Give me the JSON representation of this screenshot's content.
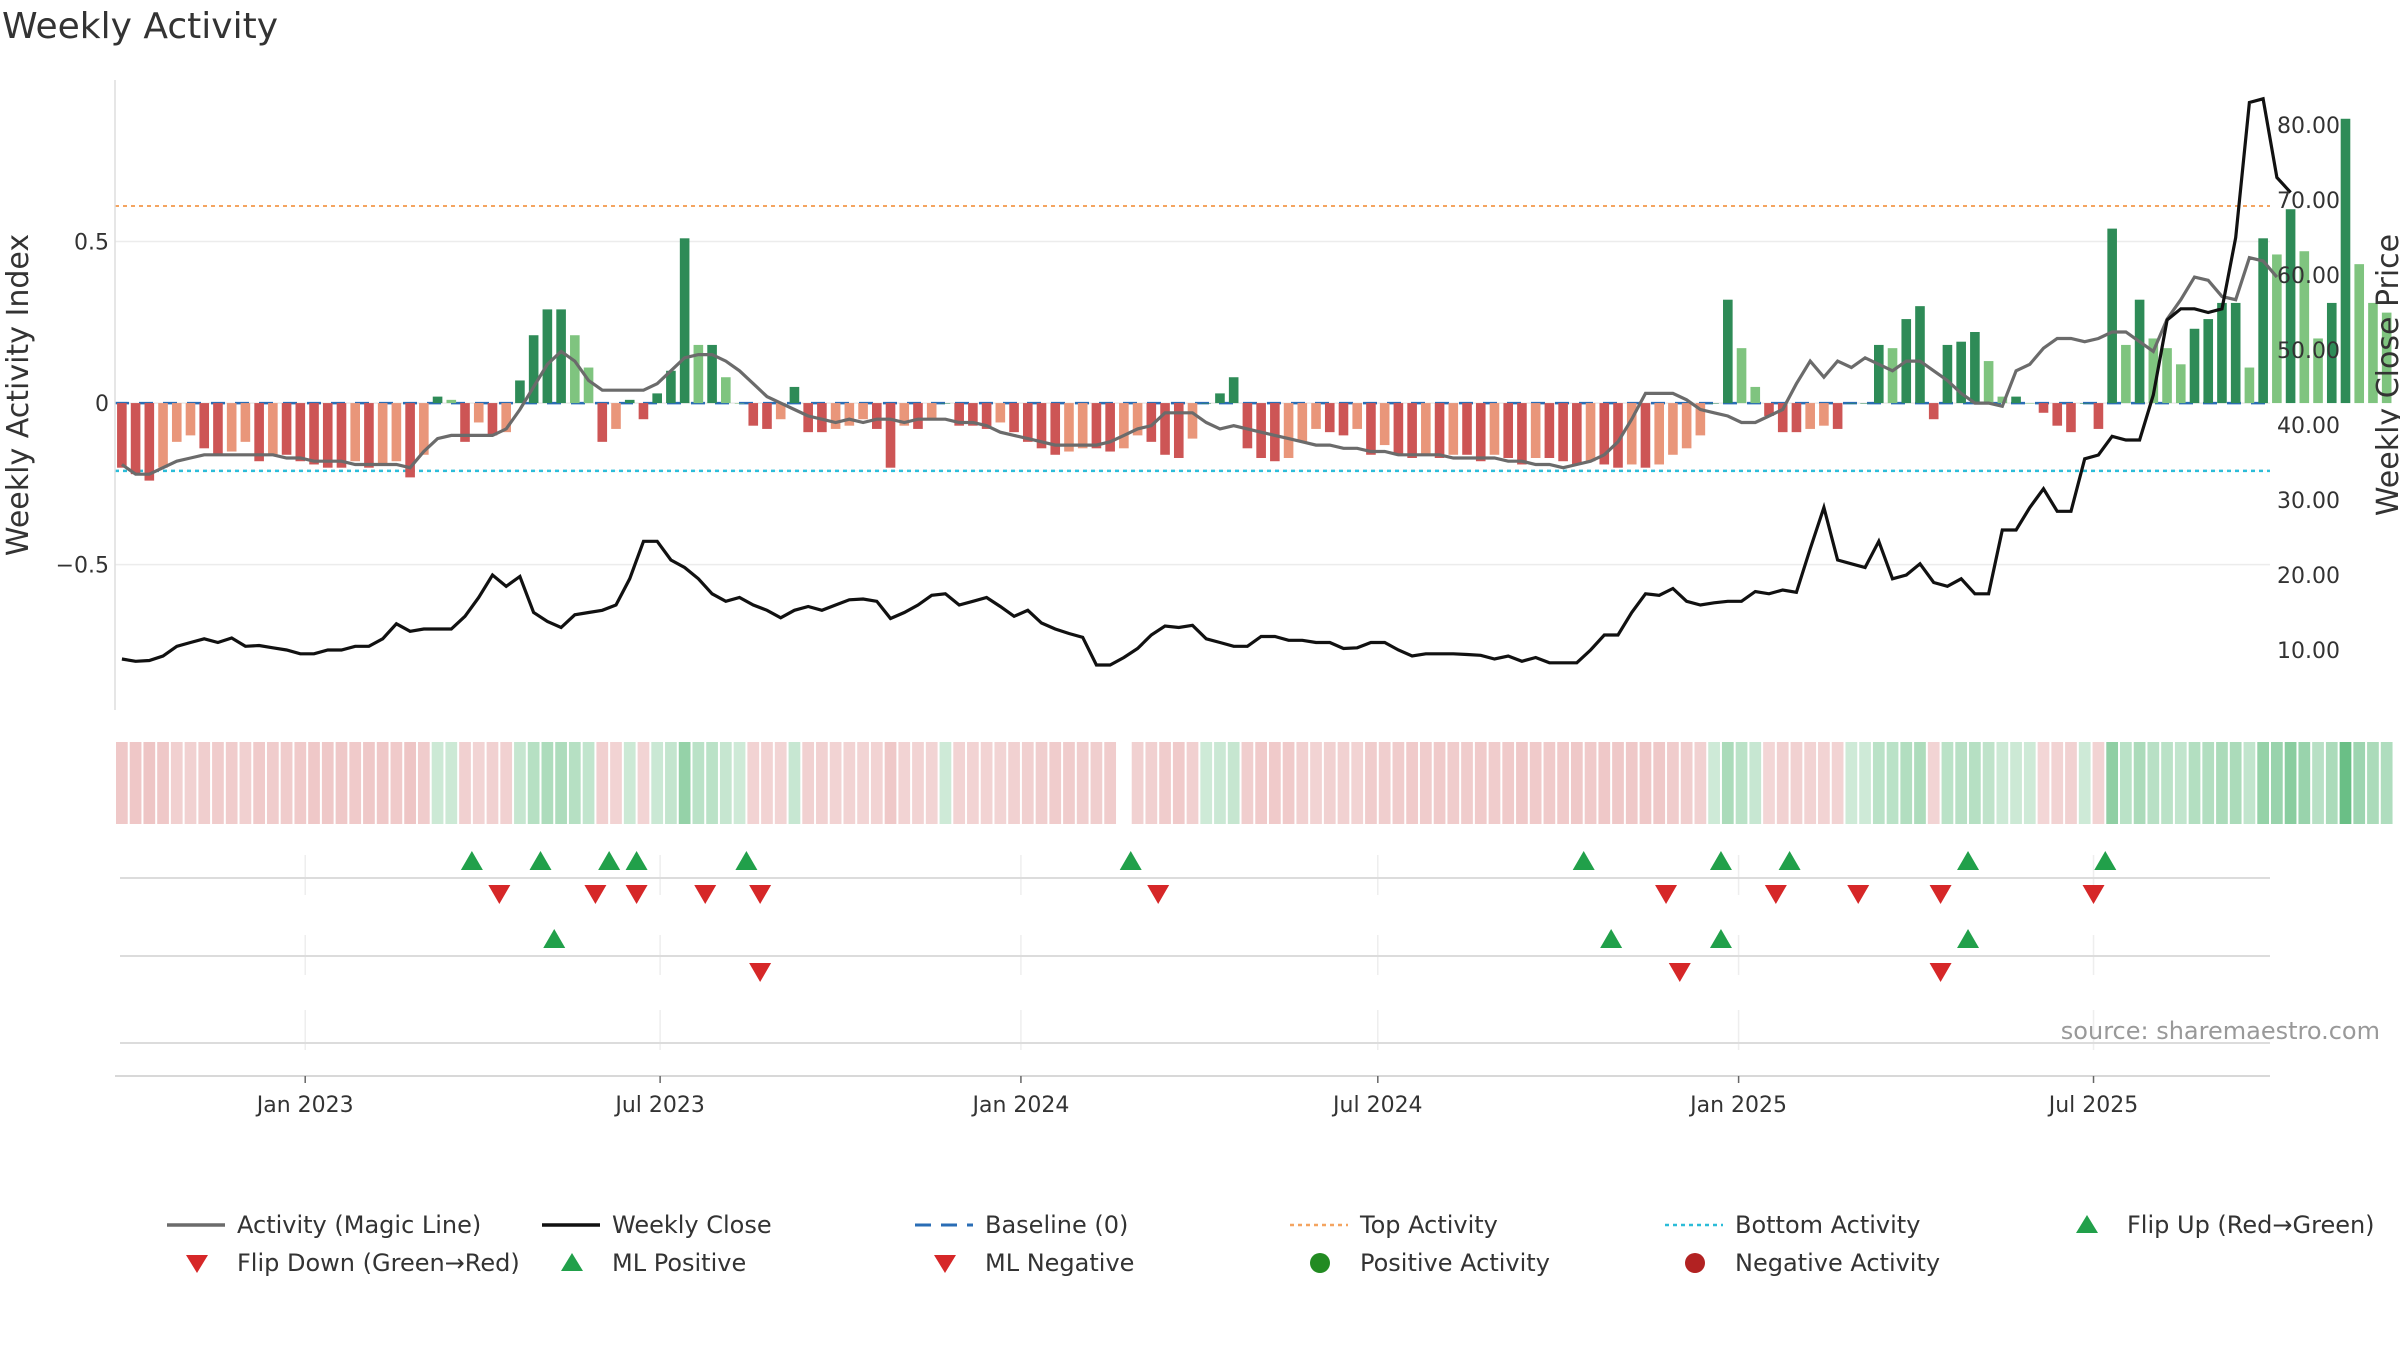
{
  "title": "Weekly Activity",
  "source": "source: sharemaestro.com",
  "colors": {
    "strong_green": "#2e8b57",
    "light_green": "#7fc47f",
    "strong_red": "#cd5555",
    "light_red": "#e9967a",
    "magic_line": "#6b6b6b",
    "close_line": "#111111",
    "baseline": "#2a6db5",
    "top_activity": "#f4a460",
    "bottom_activity": "#2bbcd8",
    "flip_up": "#21a04a",
    "flip_down": "#d62728",
    "positive_activity": "#228b22",
    "negative_activity": "#b22222"
  },
  "chart_data": {
    "type": "bar",
    "title": "Weekly Activity",
    "ylabel": "Weekly Activity Index",
    "y2label": "Weekly Close Price",
    "ylim": [
      -0.95,
      1.0
    ],
    "y2lim": [
      2.0,
      86.0
    ],
    "yticks": [
      0.5,
      0,
      -0.5
    ],
    "ytick_labels": [
      "0.5",
      "0",
      "−0.5"
    ],
    "y2ticks": [
      10,
      20,
      30,
      40,
      50,
      60,
      70,
      80
    ],
    "y2tick_labels": [
      "10.00",
      "20.00",
      "30.00",
      "40.00",
      "50.00",
      "60.00",
      "70.00",
      "80.00"
    ],
    "x_start": "2022-09-26",
    "x_end": "2025-09-29",
    "xticks": [
      "2023-01-01",
      "2023-07-01",
      "2024-01-01",
      "2024-07-01",
      "2025-01-01",
      "2025-07-01"
    ],
    "xtick_labels": [
      "Jan 2023",
      "Jul 2023",
      "Jan 2024",
      "Jul 2024",
      "Jan 2025",
      "Jul 2025"
    ],
    "top_activity": 0.61,
    "bottom_activity": -0.21,
    "baseline": 0,
    "bar_start": "2022-09-26",
    "weekly_activity": [
      -0.2,
      -0.22,
      -0.24,
      -0.2,
      -0.12,
      -0.1,
      -0.14,
      -0.16,
      -0.15,
      -0.12,
      -0.18,
      -0.16,
      -0.16,
      -0.18,
      -0.19,
      -0.2,
      -0.2,
      -0.18,
      -0.2,
      -0.19,
      -0.18,
      -0.23,
      -0.16,
      0.02,
      0.01,
      -0.12,
      -0.06,
      -0.1,
      -0.09,
      0.07,
      0.21,
      0.29,
      0.29,
      0.21,
      0.11,
      -0.12,
      -0.08,
      0.01,
      -0.05,
      0.03,
      0.1,
      0.51,
      0.18,
      0.18,
      0.08,
      0.0,
      -0.07,
      -0.08,
      -0.05,
      0.05,
      -0.09,
      -0.09,
      -0.08,
      -0.07,
      -0.05,
      -0.08,
      -0.2,
      -0.07,
      -0.08,
      -0.05,
      0.0,
      -0.07,
      -0.07,
      -0.08,
      -0.06,
      -0.09,
      -0.12,
      -0.14,
      -0.16,
      -0.15,
      -0.14,
      -0.14,
      -0.15,
      -0.14,
      -0.1,
      -0.12,
      -0.16,
      -0.17,
      -0.11,
      0.0,
      0.03,
      0.08,
      -0.14,
      -0.17,
      -0.18,
      -0.17,
      -0.12,
      -0.08,
      -0.09,
      -0.1,
      -0.08,
      -0.16,
      -0.13,
      -0.16,
      -0.17,
      -0.16,
      -0.17,
      -0.16,
      -0.16,
      -0.18,
      -0.16,
      -0.17,
      -0.19,
      -0.17,
      -0.17,
      -0.18,
      -0.19,
      -0.18,
      -0.19,
      -0.2,
      -0.19,
      -0.2,
      -0.19,
      -0.16,
      -0.14,
      -0.1,
      0.0,
      0.32,
      0.17,
      0.05,
      -0.04,
      -0.09,
      -0.09,
      -0.08,
      -0.07,
      -0.08,
      0.0,
      0.0,
      0.18,
      0.17,
      0.26,
      0.3,
      -0.05,
      0.18,
      0.19,
      0.22,
      0.13,
      0.02,
      0.02,
      0.0,
      -0.03,
      -0.07,
      -0.09,
      0.0,
      -0.08,
      0.54,
      0.18,
      0.32,
      0.2,
      0.17,
      0.12,
      0.23,
      0.26,
      0.31,
      0.31,
      0.11,
      0.51,
      0.46,
      0.6,
      0.47,
      0.2,
      0.31,
      0.88,
      0.43,
      0.31,
      0.28
    ],
    "magic_line": [
      -0.19,
      -0.22,
      -0.22,
      -0.2,
      -0.18,
      -0.17,
      -0.16,
      -0.16,
      -0.16,
      -0.16,
      -0.16,
      -0.16,
      -0.17,
      -0.17,
      -0.18,
      -0.18,
      -0.18,
      -0.19,
      -0.19,
      -0.19,
      -0.19,
      -0.2,
      -0.15,
      -0.11,
      -0.1,
      -0.1,
      -0.1,
      -0.1,
      -0.08,
      -0.02,
      0.05,
      0.12,
      0.16,
      0.13,
      0.07,
      0.04,
      0.04,
      0.04,
      0.04,
      0.06,
      0.1,
      0.14,
      0.15,
      0.15,
      0.13,
      0.1,
      0.06,
      0.02,
      0.0,
      -0.02,
      -0.04,
      -0.05,
      -0.06,
      -0.05,
      -0.06,
      -0.05,
      -0.05,
      -0.06,
      -0.05,
      -0.05,
      -0.05,
      -0.06,
      -0.06,
      -0.07,
      -0.09,
      -0.1,
      -0.11,
      -0.12,
      -0.13,
      -0.13,
      -0.13,
      -0.13,
      -0.12,
      -0.1,
      -0.08,
      -0.07,
      -0.03,
      -0.03,
      -0.03,
      -0.06,
      -0.08,
      -0.07,
      -0.08,
      -0.09,
      -0.1,
      -0.11,
      -0.12,
      -0.13,
      -0.13,
      -0.14,
      -0.14,
      -0.15,
      -0.15,
      -0.16,
      -0.16,
      -0.16,
      -0.16,
      -0.17,
      -0.17,
      -0.17,
      -0.17,
      -0.18,
      -0.18,
      -0.19,
      -0.19,
      -0.2,
      -0.19,
      -0.18,
      -0.16,
      -0.12,
      -0.05,
      0.03,
      0.03,
      0.03,
      0.01,
      -0.02,
      -0.03,
      -0.04,
      -0.06,
      -0.06,
      -0.04,
      -0.02,
      0.06,
      0.13,
      0.08,
      0.13,
      0.11,
      0.14,
      0.12,
      0.1,
      0.13,
      0.13,
      0.1,
      0.07,
      0.03,
      0.0,
      0.0,
      -0.01,
      0.1,
      0.12,
      0.17,
      0.2,
      0.2,
      0.19,
      0.2,
      0.22,
      0.22,
      0.19,
      0.16,
      0.26,
      0.32,
      0.39,
      0.38,
      0.33,
      0.32,
      0.45,
      0.44,
      0.39
    ],
    "weekly_close": [
      8.8,
      8.5,
      8.6,
      9.2,
      10.5,
      11.0,
      11.5,
      11.0,
      11.6,
      10.5,
      10.6,
      10.3,
      10.0,
      9.5,
      9.5,
      10.0,
      10.0,
      10.5,
      10.5,
      11.5,
      13.5,
      12.5,
      12.8,
      12.8,
      12.8,
      14.5,
      17.0,
      20.0,
      18.5,
      19.8,
      15.0,
      13.8,
      13.0,
      14.7,
      15.0,
      15.3,
      16.0,
      19.5,
      24.5,
      24.5,
      22.0,
      21.0,
      19.5,
      17.5,
      16.5,
      17.0,
      16.0,
      15.3,
      14.3,
      15.3,
      15.8,
      15.3,
      16.0,
      16.7,
      16.8,
      16.5,
      14.2,
      15.0,
      16.0,
      17.3,
      17.5,
      16.0,
      16.5,
      17.0,
      15.8,
      14.5,
      15.3,
      13.6,
      12.8,
      12.2,
      11.7,
      8.0,
      8.0,
      9.0,
      10.2,
      12.0,
      13.2,
      13.0,
      13.3,
      11.5,
      11.0,
      10.5,
      10.5,
      11.8,
      11.8,
      11.3,
      11.3,
      11.0,
      11.0,
      10.2,
      10.3,
      11.0,
      11.0,
      10.0,
      9.2,
      9.5,
      9.5,
      9.5,
      9.4,
      9.3,
      8.8,
      9.2,
      8.5,
      9.0,
      8.3,
      8.3,
      8.3,
      10.0,
      12.0,
      12.0,
      15.0,
      17.5,
      17.3,
      18.2,
      16.5,
      16.0,
      16.3,
      16.5,
      16.5,
      17.8,
      17.5,
      18.0,
      17.7,
      23.5,
      29.0,
      22.0,
      21.5,
      21.0,
      24.5,
      19.5,
      20.0,
      21.5,
      19.0,
      18.5,
      19.5,
      17.5,
      17.5,
      26.0,
      26.0,
      29.0,
      31.5,
      28.5,
      28.5,
      35.5,
      36.0,
      38.5,
      38.0,
      38.0,
      44.0,
      54.0,
      55.5,
      55.5,
      55.0,
      55.5,
      65.0,
      83.0,
      83.5,
      73.0,
      71.0
    ],
    "strip_gap_index": 73,
    "flip_up": [
      "2023-03-27",
      "2023-05-01",
      "2023-06-05",
      "2023-06-19",
      "2023-08-14",
      "2024-02-26",
      "2024-10-14",
      "2024-12-23",
      "2025-01-27",
      "2025-04-28",
      "2025-07-07"
    ],
    "flip_down": [
      "2023-04-10",
      "2023-05-29",
      "2023-06-19",
      "2023-07-24",
      "2023-08-21",
      "2024-03-11",
      "2024-11-25",
      "2025-01-20",
      "2025-03-03",
      "2025-04-14",
      "2025-07-01"
    ],
    "ml_positive": [
      "2023-05-08",
      "2024-10-28",
      "2024-12-23",
      "2025-04-28"
    ],
    "ml_negative": [
      "2023-08-21",
      "2024-12-02",
      "2025-04-14"
    ],
    "positive_activity": [],
    "negative_activity": [],
    "legend_position": "bottom",
    "legend": [
      {
        "label": "Activity (Magic Line)",
        "kind": "line",
        "color": "#6b6b6b"
      },
      {
        "label": "Weekly Close",
        "kind": "line",
        "color": "#111111"
      },
      {
        "label": "Baseline (0)",
        "kind": "dash",
        "color": "#2a6db5"
      },
      {
        "label": "Top Activity",
        "kind": "dot",
        "color": "#f4a460"
      },
      {
        "label": "Bottom Activity",
        "kind": "dot",
        "color": "#2bbcd8"
      },
      {
        "label": "Flip Up (Red→Green)",
        "kind": "tri-up",
        "color": "#21a04a"
      },
      {
        "label": "Flip Down (Green→Red)",
        "kind": "tri-down",
        "color": "#d62728"
      },
      {
        "label": "ML Positive",
        "kind": "tri-up",
        "color": "#21a04a"
      },
      {
        "label": "ML Negative",
        "kind": "tri-down",
        "color": "#d62728"
      },
      {
        "label": "Positive Activity",
        "kind": "circle",
        "color": "#228b22"
      },
      {
        "label": "Negative Activity",
        "kind": "circle",
        "color": "#b22222"
      }
    ]
  }
}
